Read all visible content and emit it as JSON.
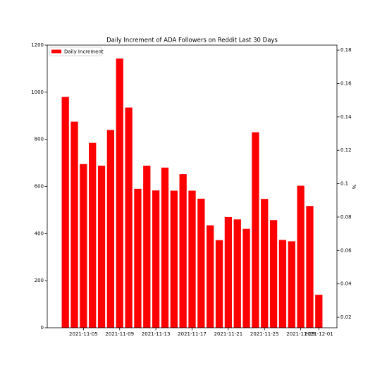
{
  "chart_data": {
    "type": "bar",
    "title": "Daily Increment of ADA Followers on Reddit Last 30 Days",
    "x": [
      "2021-11-03",
      "2021-11-04",
      "2021-11-05",
      "2021-11-06",
      "2021-11-07",
      "2021-11-08",
      "2021-11-09",
      "2021-11-10",
      "2021-11-11",
      "2021-11-12",
      "2021-11-13",
      "2021-11-14",
      "2021-11-15",
      "2021-11-16",
      "2021-11-17",
      "2021-11-18",
      "2021-11-19",
      "2021-11-20",
      "2021-11-21",
      "2021-11-22",
      "2021-11-23",
      "2021-11-24",
      "2021-11-25",
      "2021-11-26",
      "2021-11-27",
      "2021-11-28",
      "2021-11-29",
      "2021-11-30",
      "2021-12-01"
    ],
    "series": [
      {
        "name": "Daily Increment",
        "color": "#ff0000",
        "values": [
          980,
          875,
          695,
          785,
          688,
          840,
          1143,
          935,
          590,
          688,
          583,
          680,
          582,
          652,
          582,
          548,
          435,
          372,
          470,
          460,
          420,
          830,
          547,
          457,
          373,
          367,
          603,
          517,
          140
        ]
      }
    ],
    "xlim": [
      "2021-11-01",
      "2021-12-03"
    ],
    "xticks": [
      "2021-11-05",
      "2021-11-09",
      "2021-11-13",
      "2021-11-17",
      "2021-11-21",
      "2021-11-25",
      "2021-11-29",
      "2021-12-01"
    ],
    "ylim": [
      0,
      1200
    ],
    "yticks": [
      0,
      200,
      400,
      600,
      800,
      1000,
      1200
    ],
    "y2label": "%",
    "y2lim": [
      0.0137,
      0.183
    ],
    "y2ticks": [
      0.02,
      0.04,
      0.06,
      0.08,
      0.1,
      0.12,
      0.14,
      0.16,
      0.18
    ],
    "legend": "upper left"
  }
}
